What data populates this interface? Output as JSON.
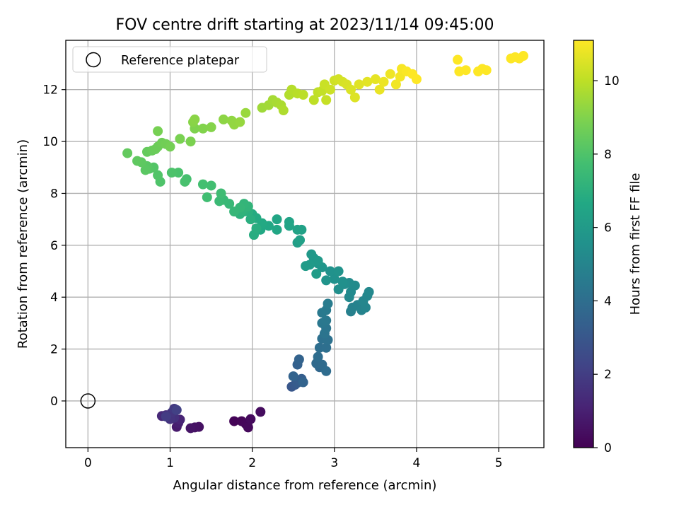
{
  "chart_data": {
    "type": "scatter",
    "title": "FOV centre drift starting at 2023/11/14 09:45:00",
    "xlabel": "Angular distance from reference (arcmin)",
    "ylabel": "Rotation from reference (arcmin)",
    "xlim": [
      -0.27,
      5.55
    ],
    "ylim": [
      -1.8,
      13.9
    ],
    "x_ticks": [
      "0",
      "1",
      "2",
      "3",
      "4",
      "5"
    ],
    "y_ticks": [
      "0",
      "2",
      "4",
      "6",
      "8",
      "10",
      "12"
    ],
    "grid": true,
    "legend": {
      "location": "top-left",
      "entries": [
        "Reference platepar"
      ]
    },
    "reference_point": {
      "x": 0,
      "y": 0
    },
    "colorbar": {
      "label": "Hours from first FF file",
      "range": [
        0,
        11.1
      ],
      "ticks": [
        "0",
        "2",
        "4",
        "6",
        "8",
        "10"
      ],
      "colormap": "viridis"
    },
    "points": [
      [
        1.78,
        -0.78,
        0.1
      ],
      [
        1.87,
        -0.78,
        0.15
      ],
      [
        1.92,
        -0.88,
        0.2
      ],
      [
        1.95,
        -1.02,
        0.25
      ],
      [
        1.98,
        -0.7,
        0.3
      ],
      [
        2.1,
        -0.42,
        0.35
      ],
      [
        1.35,
        -1.0,
        0.5
      ],
      [
        1.3,
        -1.02,
        0.55
      ],
      [
        1.25,
        -1.05,
        0.6
      ],
      [
        1.08,
        -1.0,
        0.8
      ],
      [
        1.1,
        -0.85,
        0.95
      ],
      [
        1.12,
        -0.72,
        1.1
      ],
      [
        0.9,
        -0.58,
        1.3
      ],
      [
        0.95,
        -0.55,
        1.45
      ],
      [
        1.05,
        -0.65,
        1.55
      ],
      [
        1.0,
        -0.7,
        1.65
      ],
      [
        1.02,
        -0.45,
        1.75
      ],
      [
        1.05,
        -0.3,
        1.85
      ],
      [
        0.95,
        -0.6,
        1.95
      ],
      [
        1.08,
        -0.35,
        2.1
      ],
      [
        2.48,
        0.55,
        3.0
      ],
      [
        2.52,
        0.62,
        3.1
      ],
      [
        2.55,
        0.7,
        3.2
      ],
      [
        2.58,
        0.75,
        3.25
      ],
      [
        2.6,
        0.85,
        3.3
      ],
      [
        2.55,
        1.4,
        3.4
      ],
      [
        2.57,
        1.6,
        3.5
      ],
      [
        2.5,
        0.95,
        3.5
      ],
      [
        2.62,
        0.72,
        3.55
      ],
      [
        2.82,
        1.3,
        3.75
      ],
      [
        2.78,
        1.45,
        3.8
      ],
      [
        2.85,
        1.4,
        3.85
      ],
      [
        2.9,
        1.15,
        3.9
      ],
      [
        2.8,
        1.7,
        3.95
      ],
      [
        2.82,
        2.05,
        4.0
      ],
      [
        2.9,
        2.05,
        4.05
      ],
      [
        2.85,
        2.4,
        4.1
      ],
      [
        2.92,
        2.35,
        4.15
      ],
      [
        2.88,
        2.6,
        4.25
      ],
      [
        2.9,
        2.8,
        4.3
      ],
      [
        2.85,
        3.0,
        4.4
      ],
      [
        2.9,
        3.1,
        4.45
      ],
      [
        2.85,
        3.4,
        4.5
      ],
      [
        2.9,
        3.5,
        4.55
      ],
      [
        2.92,
        3.75,
        4.6
      ],
      [
        3.2,
        3.45,
        4.8
      ],
      [
        3.22,
        3.6,
        4.85
      ],
      [
        3.28,
        3.7,
        4.9
      ],
      [
        3.33,
        3.5,
        4.95
      ],
      [
        3.38,
        3.6,
        5.0
      ],
      [
        3.35,
        3.85,
        5.05
      ],
      [
        3.4,
        4.05,
        5.1
      ],
      [
        3.42,
        4.2,
        5.15
      ],
      [
        3.18,
        4.0,
        5.2
      ],
      [
        3.2,
        4.2,
        5.25
      ],
      [
        3.25,
        4.45,
        5.3
      ],
      [
        3.18,
        4.55,
        5.35
      ],
      [
        3.12,
        4.5,
        5.4
      ],
      [
        3.05,
        4.3,
        5.45
      ],
      [
        3.1,
        4.6,
        5.5
      ],
      [
        3.0,
        4.7,
        5.55
      ],
      [
        2.95,
        5.0,
        5.6
      ],
      [
        3.05,
        5.0,
        5.65
      ],
      [
        2.9,
        4.65,
        5.7
      ],
      [
        2.85,
        5.15,
        5.75
      ],
      [
        2.8,
        5.3,
        5.8
      ],
      [
        2.75,
        5.5,
        5.85
      ],
      [
        2.72,
        5.65,
        5.9
      ],
      [
        2.8,
        5.4,
        5.95
      ],
      [
        2.7,
        5.25,
        6.0
      ],
      [
        2.65,
        5.2,
        6.05
      ],
      [
        2.78,
        4.9,
        6.1
      ],
      [
        2.55,
        6.1,
        6.2
      ],
      [
        2.58,
        6.2,
        6.25
      ],
      [
        2.6,
        6.6,
        6.3
      ],
      [
        2.55,
        6.6,
        6.35
      ],
      [
        2.45,
        6.9,
        6.4
      ],
      [
        2.45,
        6.75,
        6.45
      ],
      [
        2.3,
        7.0,
        6.5
      ],
      [
        2.3,
        6.6,
        6.55
      ],
      [
        2.2,
        6.75,
        6.6
      ],
      [
        2.1,
        6.6,
        6.65
      ],
      [
        2.12,
        6.85,
        6.7
      ],
      [
        2.05,
        7.05,
        6.75
      ],
      [
        2.0,
        7.2,
        6.8
      ],
      [
        2.02,
        6.4,
        6.85
      ],
      [
        2.05,
        6.65,
        6.9
      ],
      [
        1.98,
        7.0,
        6.95
      ],
      [
        1.95,
        7.3,
        7.0
      ],
      [
        1.9,
        7.3,
        7.05
      ],
      [
        1.85,
        7.2,
        7.1
      ],
      [
        1.88,
        7.35,
        7.15
      ],
      [
        1.95,
        7.5,
        7.2
      ],
      [
        1.9,
        7.6,
        7.25
      ],
      [
        1.85,
        7.45,
        7.3
      ],
      [
        1.78,
        7.3,
        7.35
      ],
      [
        1.72,
        7.6,
        7.4
      ],
      [
        1.65,
        7.75,
        7.45
      ],
      [
        1.6,
        7.7,
        7.5
      ],
      [
        1.62,
        8.0,
        7.6
      ],
      [
        1.45,
        7.85,
        7.65
      ],
      [
        1.5,
        8.3,
        7.7
      ],
      [
        1.4,
        8.35,
        7.75
      ],
      [
        1.2,
        8.55,
        7.8
      ],
      [
        1.18,
        8.45,
        7.85
      ],
      [
        1.1,
        8.8,
        7.9
      ],
      [
        1.02,
        8.8,
        7.95
      ],
      [
        0.88,
        8.45,
        8.0
      ],
      [
        0.85,
        8.7,
        8.05
      ],
      [
        0.8,
        9.0,
        8.1
      ],
      [
        0.75,
        8.95,
        8.15
      ],
      [
        0.72,
        9.05,
        8.2
      ],
      [
        0.7,
        8.9,
        8.25
      ],
      [
        0.65,
        9.2,
        8.3
      ],
      [
        0.6,
        9.25,
        8.35
      ],
      [
        0.48,
        9.55,
        8.4
      ],
      [
        0.72,
        9.6,
        8.45
      ],
      [
        0.78,
        9.65,
        8.5
      ],
      [
        0.82,
        9.7,
        8.55
      ],
      [
        0.85,
        9.8,
        8.6
      ],
      [
        0.9,
        9.95,
        8.65
      ],
      [
        0.95,
        9.9,
        8.7
      ],
      [
        1.0,
        9.8,
        8.75
      ],
      [
        0.85,
        10.4,
        8.8
      ],
      [
        1.12,
        10.1,
        8.85
      ],
      [
        1.25,
        10.0,
        8.9
      ],
      [
        1.3,
        10.5,
        8.95
      ],
      [
        1.4,
        10.5,
        9.0
      ],
      [
        1.5,
        10.55,
        9.05
      ],
      [
        1.28,
        10.75,
        9.1
      ],
      [
        1.3,
        10.85,
        9.15
      ],
      [
        1.65,
        10.85,
        9.2
      ],
      [
        1.75,
        10.8,
        9.25
      ],
      [
        1.78,
        10.65,
        9.3
      ],
      [
        1.85,
        10.75,
        9.35
      ],
      [
        1.92,
        11.1,
        9.4
      ],
      [
        2.12,
        11.3,
        9.5
      ],
      [
        2.2,
        11.4,
        9.55
      ],
      [
        2.25,
        11.6,
        9.6
      ],
      [
        2.3,
        11.5,
        9.65
      ],
      [
        2.35,
        11.4,
        9.7
      ],
      [
        2.38,
        11.2,
        9.75
      ],
      [
        2.45,
        11.8,
        9.8
      ],
      [
        2.48,
        12.0,
        9.85
      ],
      [
        2.55,
        11.85,
        9.9
      ],
      [
        2.62,
        11.8,
        9.95
      ],
      [
        2.75,
        11.6,
        10.0
      ],
      [
        2.8,
        11.9,
        10.05
      ],
      [
        2.85,
        11.95,
        10.1
      ],
      [
        2.9,
        11.6,
        10.15
      ],
      [
        2.88,
        12.2,
        10.2
      ],
      [
        2.95,
        12.0,
        10.25
      ],
      [
        3.0,
        12.35,
        10.3
      ],
      [
        3.05,
        12.4,
        10.35
      ],
      [
        3.1,
        12.3,
        10.4
      ],
      [
        3.15,
        12.2,
        10.45
      ],
      [
        3.2,
        12.0,
        10.5
      ],
      [
        3.25,
        11.7,
        10.55
      ],
      [
        3.3,
        12.2,
        10.6
      ],
      [
        3.4,
        12.3,
        10.65
      ],
      [
        3.5,
        12.4,
        10.7
      ],
      [
        3.55,
        12.0,
        10.75
      ],
      [
        3.6,
        12.3,
        10.8
      ],
      [
        3.68,
        12.6,
        10.85
      ],
      [
        3.75,
        12.2,
        10.9
      ],
      [
        3.8,
        12.5,
        10.95
      ],
      [
        3.82,
        12.8,
        11.0
      ],
      [
        3.88,
        12.7,
        11.05
      ],
      [
        3.95,
        12.6,
        11.1
      ],
      [
        4.0,
        12.4,
        11.1
      ],
      [
        4.5,
        13.15,
        11.1
      ],
      [
        4.52,
        12.7,
        11.1
      ],
      [
        4.6,
        12.75,
        11.1
      ],
      [
        4.75,
        12.7,
        11.1
      ],
      [
        4.8,
        12.8,
        11.1
      ],
      [
        4.85,
        12.75,
        11.1
      ],
      [
        5.15,
        13.2,
        11.1
      ],
      [
        5.2,
        13.25,
        11.1
      ],
      [
        5.25,
        13.2,
        11.1
      ],
      [
        5.3,
        13.3,
        11.1
      ]
    ]
  }
}
